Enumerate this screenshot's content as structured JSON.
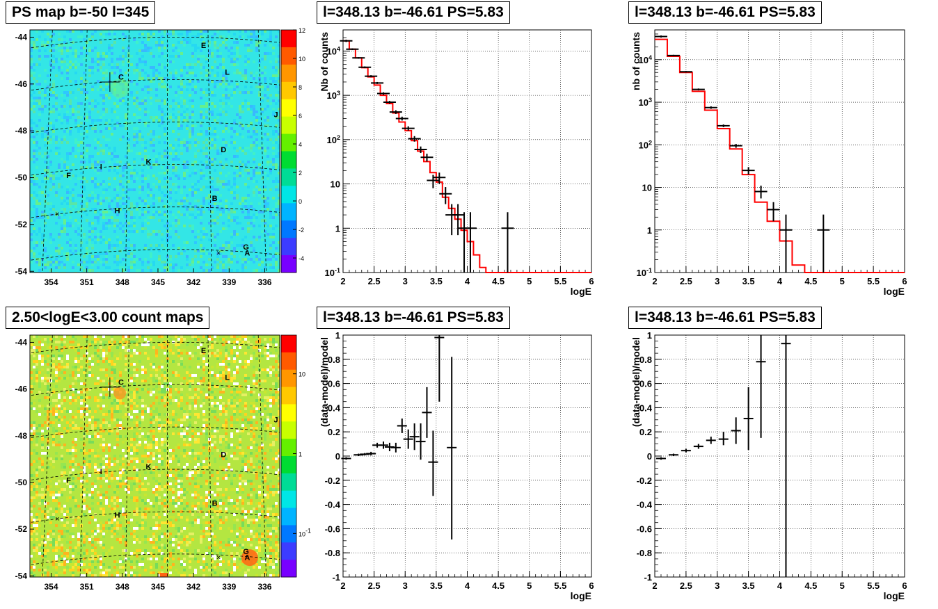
{
  "panels": {
    "map_ps": {
      "title": "PS map b=-50 l=345"
    },
    "map_counts": {
      "title": "2.50<logE<3.00 count maps"
    },
    "spec1": {
      "title": "l=348.13 b=-46.61 PS=5.83"
    },
    "spec2": {
      "title": "l=348.13 b=-46.61 PS=5.83"
    },
    "res1": {
      "title": "l=348.13 b=-46.61 PS=5.83"
    },
    "res2": {
      "title": "l=348.13 b=-46.61 PS=5.83"
    }
  },
  "maps": {
    "y_ticks": [
      "-44",
      "-46",
      "-48",
      "-50",
      "-52",
      "-54"
    ],
    "x_ticks": [
      "354",
      "351",
      "348",
      "345",
      "342",
      "339",
      "336"
    ],
    "labels": [
      "E",
      "L",
      "C",
      "J",
      "D",
      "K",
      "I",
      "F",
      "B",
      "H",
      "G",
      "A"
    ],
    "ps_colorbar_ticks": [
      "12",
      "10",
      "8",
      "6",
      "4",
      "2",
      "0",
      "-2",
      "-4"
    ],
    "count_colorbar_ticks": [
      "10",
      "1",
      "10-1"
    ],
    "colors": {
      "ps_background": "#33e6e6",
      "count_background": "#b4e641"
    }
  },
  "chart_data": [
    {
      "id": "spec1",
      "type": "line",
      "title": "l=348.13 b=-46.61 PS=5.83",
      "xlabel": "logE",
      "ylabel": "Nb of counts",
      "xlim": [
        2,
        6
      ],
      "ylim": [
        0.1,
        30000
      ],
      "yscale": "log",
      "grid": true,
      "x_ticks": [
        "2",
        "2.5",
        "3",
        "3.5",
        "4",
        "4.5",
        "5",
        "5.5",
        "6"
      ],
      "y_ticks": [
        "10-1",
        "1",
        "10",
        "102",
        "103",
        "104"
      ],
      "model_color": "#ff0000",
      "model": [
        {
          "x0": 2.0,
          "x1": 2.1,
          "y": 17000
        },
        {
          "x0": 2.1,
          "x1": 2.2,
          "y": 11000
        },
        {
          "x0": 2.2,
          "x1": 2.3,
          "y": 7000
        },
        {
          "x0": 2.3,
          "x1": 2.4,
          "y": 4200
        },
        {
          "x0": 2.4,
          "x1": 2.5,
          "y": 2600
        },
        {
          "x0": 2.5,
          "x1": 2.6,
          "y": 1700
        },
        {
          "x0": 2.6,
          "x1": 2.7,
          "y": 1000
        },
        {
          "x0": 2.7,
          "x1": 2.8,
          "y": 650
        },
        {
          "x0": 2.8,
          "x1": 2.9,
          "y": 400
        },
        {
          "x0": 2.9,
          "x1": 3.0,
          "y": 250
        },
        {
          "x0": 3.0,
          "x1": 3.1,
          "y": 160
        },
        {
          "x0": 3.1,
          "x1": 3.2,
          "y": 95
        },
        {
          "x0": 3.2,
          "x1": 3.3,
          "y": 55
        },
        {
          "x0": 3.3,
          "x1": 3.4,
          "y": 32
        },
        {
          "x0": 3.4,
          "x1": 3.5,
          "y": 18
        },
        {
          "x0": 3.5,
          "x1": 3.6,
          "y": 11
        },
        {
          "x0": 3.6,
          "x1": 3.7,
          "y": 5
        },
        {
          "x0": 3.7,
          "x1": 3.8,
          "y": 2.8
        },
        {
          "x0": 3.8,
          "x1": 3.9,
          "y": 1.6
        },
        {
          "x0": 3.9,
          "x1": 4.0,
          "y": 0.9
        },
        {
          "x0": 4.0,
          "x1": 4.1,
          "y": 0.5
        },
        {
          "x0": 4.1,
          "x1": 4.2,
          "y": 0.25
        },
        {
          "x0": 4.2,
          "x1": 4.3,
          "y": 0.13
        },
        {
          "x0": 4.3,
          "x1": 6.0,
          "y": 0.1
        }
      ],
      "points": [
        {
          "x": 2.05,
          "y": 17000,
          "lo": 16000,
          "hi": 18000
        },
        {
          "x": 2.15,
          "y": 11000,
          "lo": 10500,
          "hi": 11500
        },
        {
          "x": 2.25,
          "y": 7000,
          "lo": 6700,
          "hi": 7300
        },
        {
          "x": 2.35,
          "y": 4300,
          "lo": 4100,
          "hi": 4500
        },
        {
          "x": 2.45,
          "y": 2700,
          "lo": 2550,
          "hi": 2850
        },
        {
          "x": 2.55,
          "y": 1900,
          "lo": 1800,
          "hi": 2000
        },
        {
          "x": 2.65,
          "y": 1100,
          "lo": 1030,
          "hi": 1170
        },
        {
          "x": 2.75,
          "y": 700,
          "lo": 650,
          "hi": 750
        },
        {
          "x": 2.85,
          "y": 420,
          "lo": 380,
          "hi": 460
        },
        {
          "x": 2.95,
          "y": 300,
          "lo": 270,
          "hi": 330
        },
        {
          "x": 3.05,
          "y": 180,
          "lo": 160,
          "hi": 200
        },
        {
          "x": 3.15,
          "y": 105,
          "lo": 90,
          "hi": 120
        },
        {
          "x": 3.25,
          "y": 60,
          "lo": 50,
          "hi": 70
        },
        {
          "x": 3.35,
          "y": 40,
          "lo": 32,
          "hi": 48
        },
        {
          "x": 3.45,
          "y": 12,
          "lo": 8,
          "hi": 16
        },
        {
          "x": 3.55,
          "y": 14,
          "lo": 10,
          "hi": 18
        },
        {
          "x": 3.65,
          "y": 6,
          "lo": 3.5,
          "hi": 8.5
        },
        {
          "x": 3.75,
          "y": 2,
          "lo": 0.7,
          "hi": 3.5
        },
        {
          "x": 3.85,
          "y": 2,
          "lo": 0.7,
          "hi": 3.5
        },
        {
          "x": 3.95,
          "y": 1,
          "lo": 0.1,
          "hi": 2.3
        },
        {
          "x": 4.05,
          "y": 1,
          "lo": 0.1,
          "hi": 2.3
        },
        {
          "x": 4.65,
          "y": 1,
          "lo": 0.1,
          "hi": 2.3
        }
      ]
    },
    {
      "id": "spec2",
      "type": "line",
      "title": "l=348.13 b=-46.61 PS=5.83",
      "xlabel": "logE",
      "ylabel": "nb of counts",
      "xlim": [
        2,
        6
      ],
      "ylim": [
        0.1,
        50000
      ],
      "yscale": "log",
      "grid": true,
      "x_ticks": [
        "2",
        "2.5",
        "3",
        "3.5",
        "4",
        "4.5",
        "5",
        "5.5",
        "6"
      ],
      "y_ticks": [
        "10-1",
        "1",
        "10",
        "102",
        "103",
        "104"
      ],
      "model_color": "#ff0000",
      "model": [
        {
          "x0": 2.0,
          "x1": 2.2,
          "y": 30000
        },
        {
          "x0": 2.2,
          "x1": 2.4,
          "y": 12000
        },
        {
          "x0": 2.4,
          "x1": 2.6,
          "y": 5000
        },
        {
          "x0": 2.6,
          "x1": 2.8,
          "y": 1800
        },
        {
          "x0": 2.8,
          "x1": 3.0,
          "y": 650
        },
        {
          "x0": 3.0,
          "x1": 3.2,
          "y": 240
        },
        {
          "x0": 3.2,
          "x1": 3.4,
          "y": 80
        },
        {
          "x0": 3.4,
          "x1": 3.6,
          "y": 20
        },
        {
          "x0": 3.6,
          "x1": 3.8,
          "y": 4.5
        },
        {
          "x0": 3.8,
          "x1": 4.0,
          "y": 1.6
        },
        {
          "x0": 4.0,
          "x1": 4.2,
          "y": 0.55
        },
        {
          "x0": 4.2,
          "x1": 4.4,
          "y": 0.15
        },
        {
          "x0": 4.4,
          "x1": 6.0,
          "y": 0.1
        }
      ],
      "points": [
        {
          "x": 2.1,
          "y": 35000,
          "lo": 33000,
          "hi": 37000
        },
        {
          "x": 2.3,
          "y": 12500,
          "lo": 12000,
          "hi": 13000
        },
        {
          "x": 2.5,
          "y": 5200,
          "lo": 5000,
          "hi": 5400
        },
        {
          "x": 2.7,
          "y": 2000,
          "lo": 1900,
          "hi": 2100
        },
        {
          "x": 2.9,
          "y": 750,
          "lo": 700,
          "hi": 800
        },
        {
          "x": 3.1,
          "y": 280,
          "lo": 260,
          "hi": 300
        },
        {
          "x": 3.3,
          "y": 95,
          "lo": 85,
          "hi": 105
        },
        {
          "x": 3.5,
          "y": 25,
          "lo": 20,
          "hi": 30
        },
        {
          "x": 3.7,
          "y": 8,
          "lo": 5.5,
          "hi": 11
        },
        {
          "x": 3.9,
          "y": 3,
          "lo": 1.6,
          "hi": 4.5
        },
        {
          "x": 4.1,
          "y": 1,
          "lo": 0.1,
          "hi": 2.3
        },
        {
          "x": 4.7,
          "y": 1,
          "lo": 0.1,
          "hi": 2.3
        }
      ]
    },
    {
      "id": "res1",
      "type": "scatter",
      "title": "l=348.13 b=-46.61 PS=5.83",
      "xlabel": "logE",
      "ylabel": "(data-model)/model",
      "xlim": [
        2,
        6
      ],
      "ylim": [
        -1,
        1
      ],
      "grid": true,
      "x_ticks": [
        "2",
        "2.5",
        "3",
        "3.5",
        "4",
        "4.5",
        "5",
        "5.5",
        "6"
      ],
      "y_ticks": [
        "-1",
        "-0.8",
        "-0.6",
        "-0.4",
        "-0.2",
        "0",
        "0.2",
        "0.4",
        "0.6",
        "0.8",
        "1"
      ],
      "points": [
        {
          "x": 2.05,
          "y": -0.02,
          "lo": -0.03,
          "hi": -0.01
        },
        {
          "x": 2.25,
          "y": 0.01,
          "lo": 0.0,
          "hi": 0.02
        },
        {
          "x": 2.35,
          "y": 0.015,
          "lo": 0.005,
          "hi": 0.025
        },
        {
          "x": 2.45,
          "y": 0.02,
          "lo": 0.005,
          "hi": 0.035
        },
        {
          "x": 2.55,
          "y": 0.09,
          "lo": 0.07,
          "hi": 0.11
        },
        {
          "x": 2.65,
          "y": 0.09,
          "lo": 0.06,
          "hi": 0.12
        },
        {
          "x": 2.75,
          "y": 0.075,
          "lo": 0.04,
          "hi": 0.11
        },
        {
          "x": 2.85,
          "y": 0.07,
          "lo": 0.03,
          "hi": 0.11
        },
        {
          "x": 2.95,
          "y": 0.25,
          "lo": 0.19,
          "hi": 0.31
        },
        {
          "x": 3.05,
          "y": 0.14,
          "lo": 0.06,
          "hi": 0.22
        },
        {
          "x": 3.15,
          "y": 0.16,
          "lo": 0.05,
          "hi": 0.27
        },
        {
          "x": 3.25,
          "y": 0.12,
          "lo": -0.03,
          "hi": 0.27
        },
        {
          "x": 3.35,
          "y": 0.36,
          "lo": 0.15,
          "hi": 0.57
        },
        {
          "x": 3.45,
          "y": -0.05,
          "lo": -0.33,
          "hi": 0.21
        },
        {
          "x": 3.55,
          "y": 0.98,
          "lo": 0.45,
          "hi": 1.0
        },
        {
          "x": 3.75,
          "y": 0.07,
          "lo": -0.69,
          "hi": 0.82
        }
      ]
    },
    {
      "id": "res2",
      "type": "scatter",
      "title": "l=348.13 b=-46.61 PS=5.83",
      "xlabel": "logE",
      "ylabel": "(data-model)/model",
      "xlim": [
        2,
        6
      ],
      "ylim": [
        -1,
        1
      ],
      "grid": true,
      "x_ticks": [
        "2",
        "2.5",
        "3",
        "3.5",
        "4",
        "4.5",
        "5",
        "5.5",
        "6"
      ],
      "y_ticks": [
        "-1",
        "-0.8",
        "-0.6",
        "-0.4",
        "-0.2",
        "0",
        "0.2",
        "0.4",
        "0.6",
        "0.8",
        "1"
      ],
      "points": [
        {
          "x": 2.1,
          "y": -0.02,
          "lo": -0.03,
          "hi": -0.01
        },
        {
          "x": 2.3,
          "y": 0.01,
          "lo": 0.0,
          "hi": 0.02
        },
        {
          "x": 2.5,
          "y": 0.045,
          "lo": 0.03,
          "hi": 0.06
        },
        {
          "x": 2.7,
          "y": 0.08,
          "lo": 0.06,
          "hi": 0.1
        },
        {
          "x": 2.9,
          "y": 0.13,
          "lo": 0.1,
          "hi": 0.16
        },
        {
          "x": 3.1,
          "y": 0.14,
          "lo": 0.09,
          "hi": 0.2
        },
        {
          "x": 3.3,
          "y": 0.21,
          "lo": 0.1,
          "hi": 0.32
        },
        {
          "x": 3.5,
          "y": 0.31,
          "lo": 0.05,
          "hi": 0.57
        },
        {
          "x": 3.7,
          "y": 0.78,
          "lo": 0.15,
          "hi": 1.0
        },
        {
          "x": 4.1,
          "y": 0.93,
          "lo": -1.0,
          "hi": 1.0
        }
      ]
    }
  ]
}
